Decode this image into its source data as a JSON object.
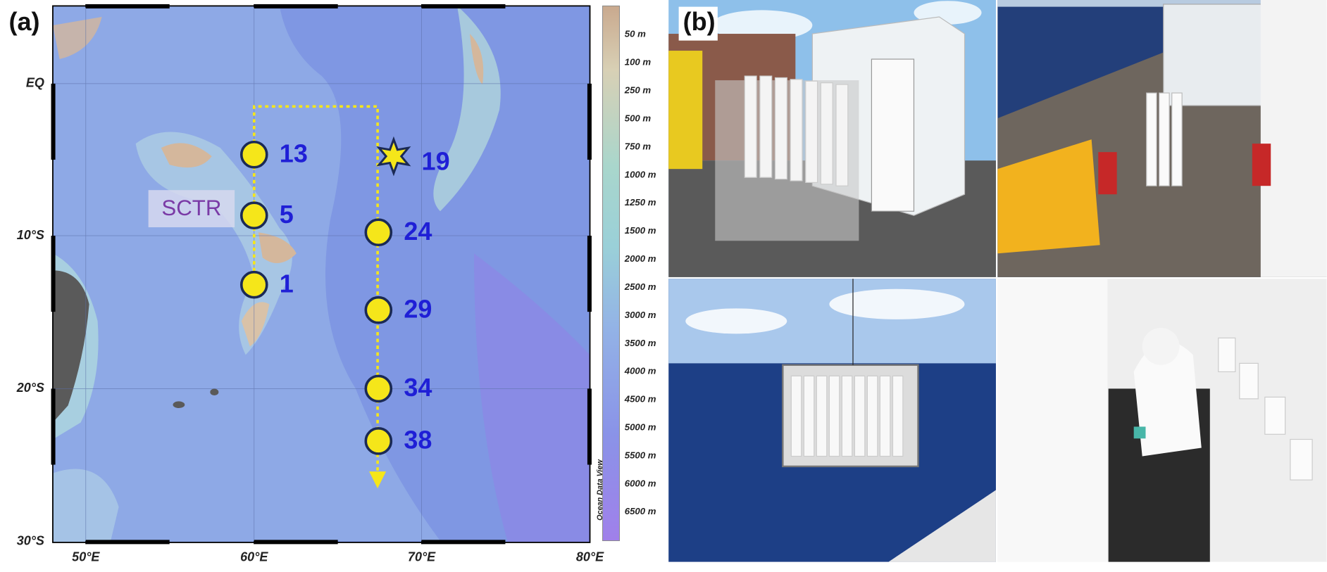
{
  "panels": {
    "a": "(a)",
    "b": "(b)"
  },
  "map": {
    "lat_labels": [
      "EQ",
      "10°S",
      "20°S",
      "30°S"
    ],
    "lon_labels": [
      "50°E",
      "60°E",
      "70°E",
      "80°E"
    ],
    "region_label": "SCTR",
    "stations": [
      "13",
      "5",
      "1",
      "24",
      "29",
      "34",
      "38"
    ],
    "star_station": "19",
    "depth_labels": [
      "50 m",
      "100 m",
      "250 m",
      "500 m",
      "750 m",
      "1000 m",
      "1250 m",
      "1500 m",
      "2000 m",
      "2500 m",
      "3000 m",
      "3500 m",
      "4000 m",
      "4500 m",
      "5000 m",
      "5500 m",
      "6000 m",
      "6500 m"
    ],
    "credit": "Ocean Data View"
  }
}
